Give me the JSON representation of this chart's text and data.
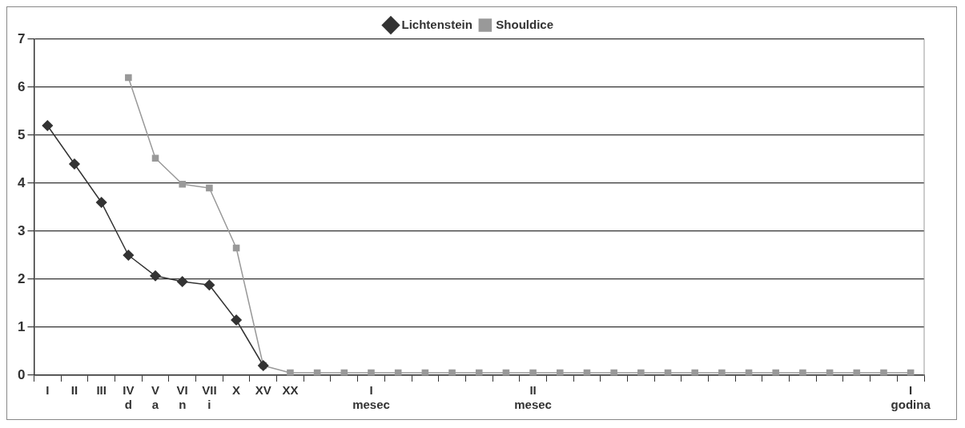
{
  "chart_data": {
    "type": "line",
    "categories": [
      "I",
      "II",
      "III",
      "IV\nd",
      "V\na",
      "VI\nn",
      "VII\ni",
      "X",
      "XV",
      "XX",
      null,
      null,
      "I\nmesec",
      null,
      null,
      null,
      null,
      null,
      "II\nmesec",
      null,
      null,
      null,
      null,
      null,
      null,
      null,
      null,
      null,
      null,
      null,
      null,
      null,
      "I\ngodina"
    ],
    "series": [
      {
        "name": "Lichtenstein",
        "color": "#333333",
        "marker": "diamond",
        "values": [
          5.2,
          4.4,
          3.6,
          2.5,
          2.07,
          1.95,
          1.88,
          1.15,
          0.2,
          null,
          null,
          null,
          null,
          null,
          null,
          null,
          null,
          null,
          null,
          null,
          null,
          null,
          null,
          null,
          null,
          null,
          null,
          null,
          null,
          null,
          null,
          null,
          null
        ]
      },
      {
        "name": "Shouldice",
        "color": "#999999",
        "marker": "square",
        "values": [
          null,
          null,
          null,
          6.2,
          4.52,
          3.98,
          3.9,
          2.65,
          0.2,
          0.05,
          0.05,
          0.05,
          0.05,
          0.05,
          0.05,
          0.05,
          0.05,
          0.05,
          0.05,
          0.05,
          0.05,
          0.05,
          0.05,
          0.05,
          0.05,
          0.05,
          0.05,
          0.05,
          0.05,
          0.05,
          0.05,
          0.05,
          0.05
        ]
      }
    ],
    "ylim": [
      0,
      7
    ],
    "yticks": [
      0,
      1,
      2,
      3,
      4,
      5,
      6,
      7
    ],
    "grid": "y",
    "legend": "top",
    "line_style": "solid"
  }
}
